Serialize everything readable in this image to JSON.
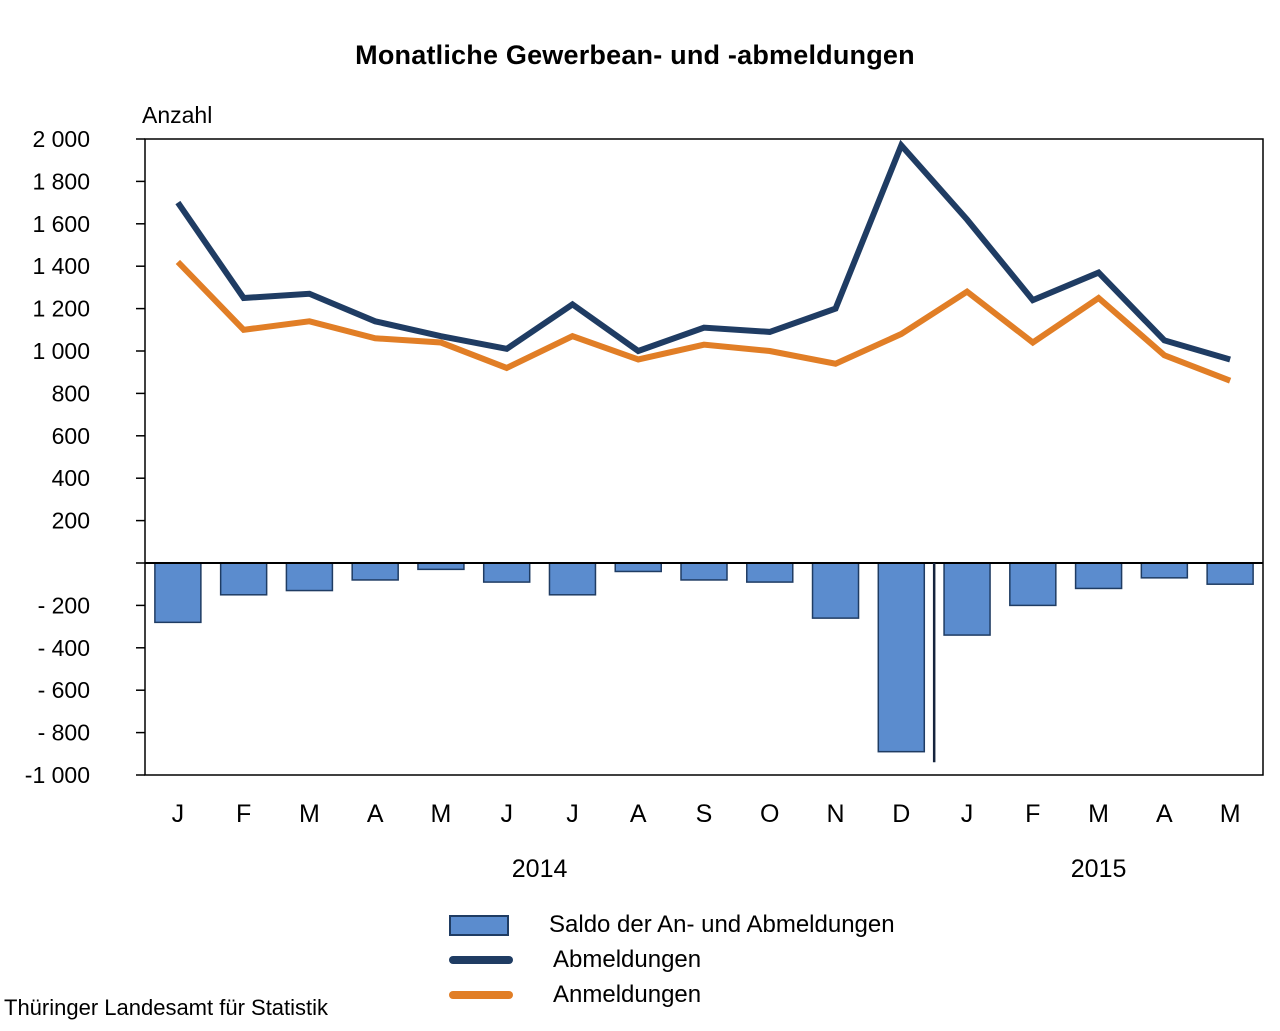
{
  "page": {
    "source_note": "Thüringer Landesamt für Statistik"
  },
  "chart_data": {
    "type": "combo",
    "title": "Monatliche Gewerbean- und -abmeldungen",
    "y_axis_title": "Anzahl",
    "xlabel": "",
    "ylabel": "Anzahl",
    "ylim": [
      -1000,
      2000
    ],
    "ytick_step": 200,
    "grid": false,
    "legend_position": "bottom",
    "categories": [
      "J",
      "F",
      "M",
      "A",
      "M",
      "J",
      "J",
      "A",
      "S",
      "O",
      "N",
      "D",
      "J",
      "F",
      "M",
      "A",
      "M"
    ],
    "year_labels": [
      {
        "label": "2014",
        "center_index": 5.5
      },
      {
        "label": "2015",
        "center_index": 14
      }
    ],
    "y_ticks": [
      {
        "value": 2000,
        "label": "2 000"
      },
      {
        "value": 1800,
        "label": "1 800"
      },
      {
        "value": 1600,
        "label": "1 600"
      },
      {
        "value": 1400,
        "label": "1 400"
      },
      {
        "value": 1200,
        "label": "1 200"
      },
      {
        "value": 1000,
        "label": "1 000"
      },
      {
        "value": 800,
        "label": "800"
      },
      {
        "value": 600,
        "label": "600"
      },
      {
        "value": 400,
        "label": "400"
      },
      {
        "value": 200,
        "label": "200"
      },
      {
        "value": 0,
        "label": ""
      },
      {
        "value": -200,
        "label": "- 200"
      },
      {
        "value": -400,
        "label": "- 400"
      },
      {
        "value": -600,
        "label": "- 600"
      },
      {
        "value": -800,
        "label": "- 800"
      },
      {
        "value": -1000,
        "label": "-1 000"
      }
    ],
    "series": [
      {
        "name": "Saldo der An- und Abmeldungen",
        "type": "bar",
        "color": "#5b8cce",
        "border_color": "#1f3c63",
        "values": [
          -280,
          -150,
          -130,
          -80,
          -30,
          -90,
          -150,
          -40,
          -80,
          -90,
          -260,
          -890,
          -340,
          -200,
          -120,
          -70,
          -100
        ]
      },
      {
        "name": "Abmeldungen",
        "type": "line",
        "color": "#1f3c63",
        "values": [
          1700,
          1250,
          1270,
          1140,
          1070,
          1010,
          1220,
          1000,
          1110,
          1090,
          1200,
          1970,
          1620,
          1240,
          1370,
          1050,
          960
        ]
      },
      {
        "name": "Anmeldungen",
        "type": "line",
        "color": "#e17e26",
        "values": [
          1420,
          1100,
          1140,
          1060,
          1040,
          920,
          1070,
          960,
          1030,
          1000,
          940,
          1080,
          1280,
          1040,
          1250,
          980,
          860
        ]
      }
    ],
    "year_separator": {
      "after_index": 11,
      "from_value": 0,
      "to_value": -940
    }
  }
}
